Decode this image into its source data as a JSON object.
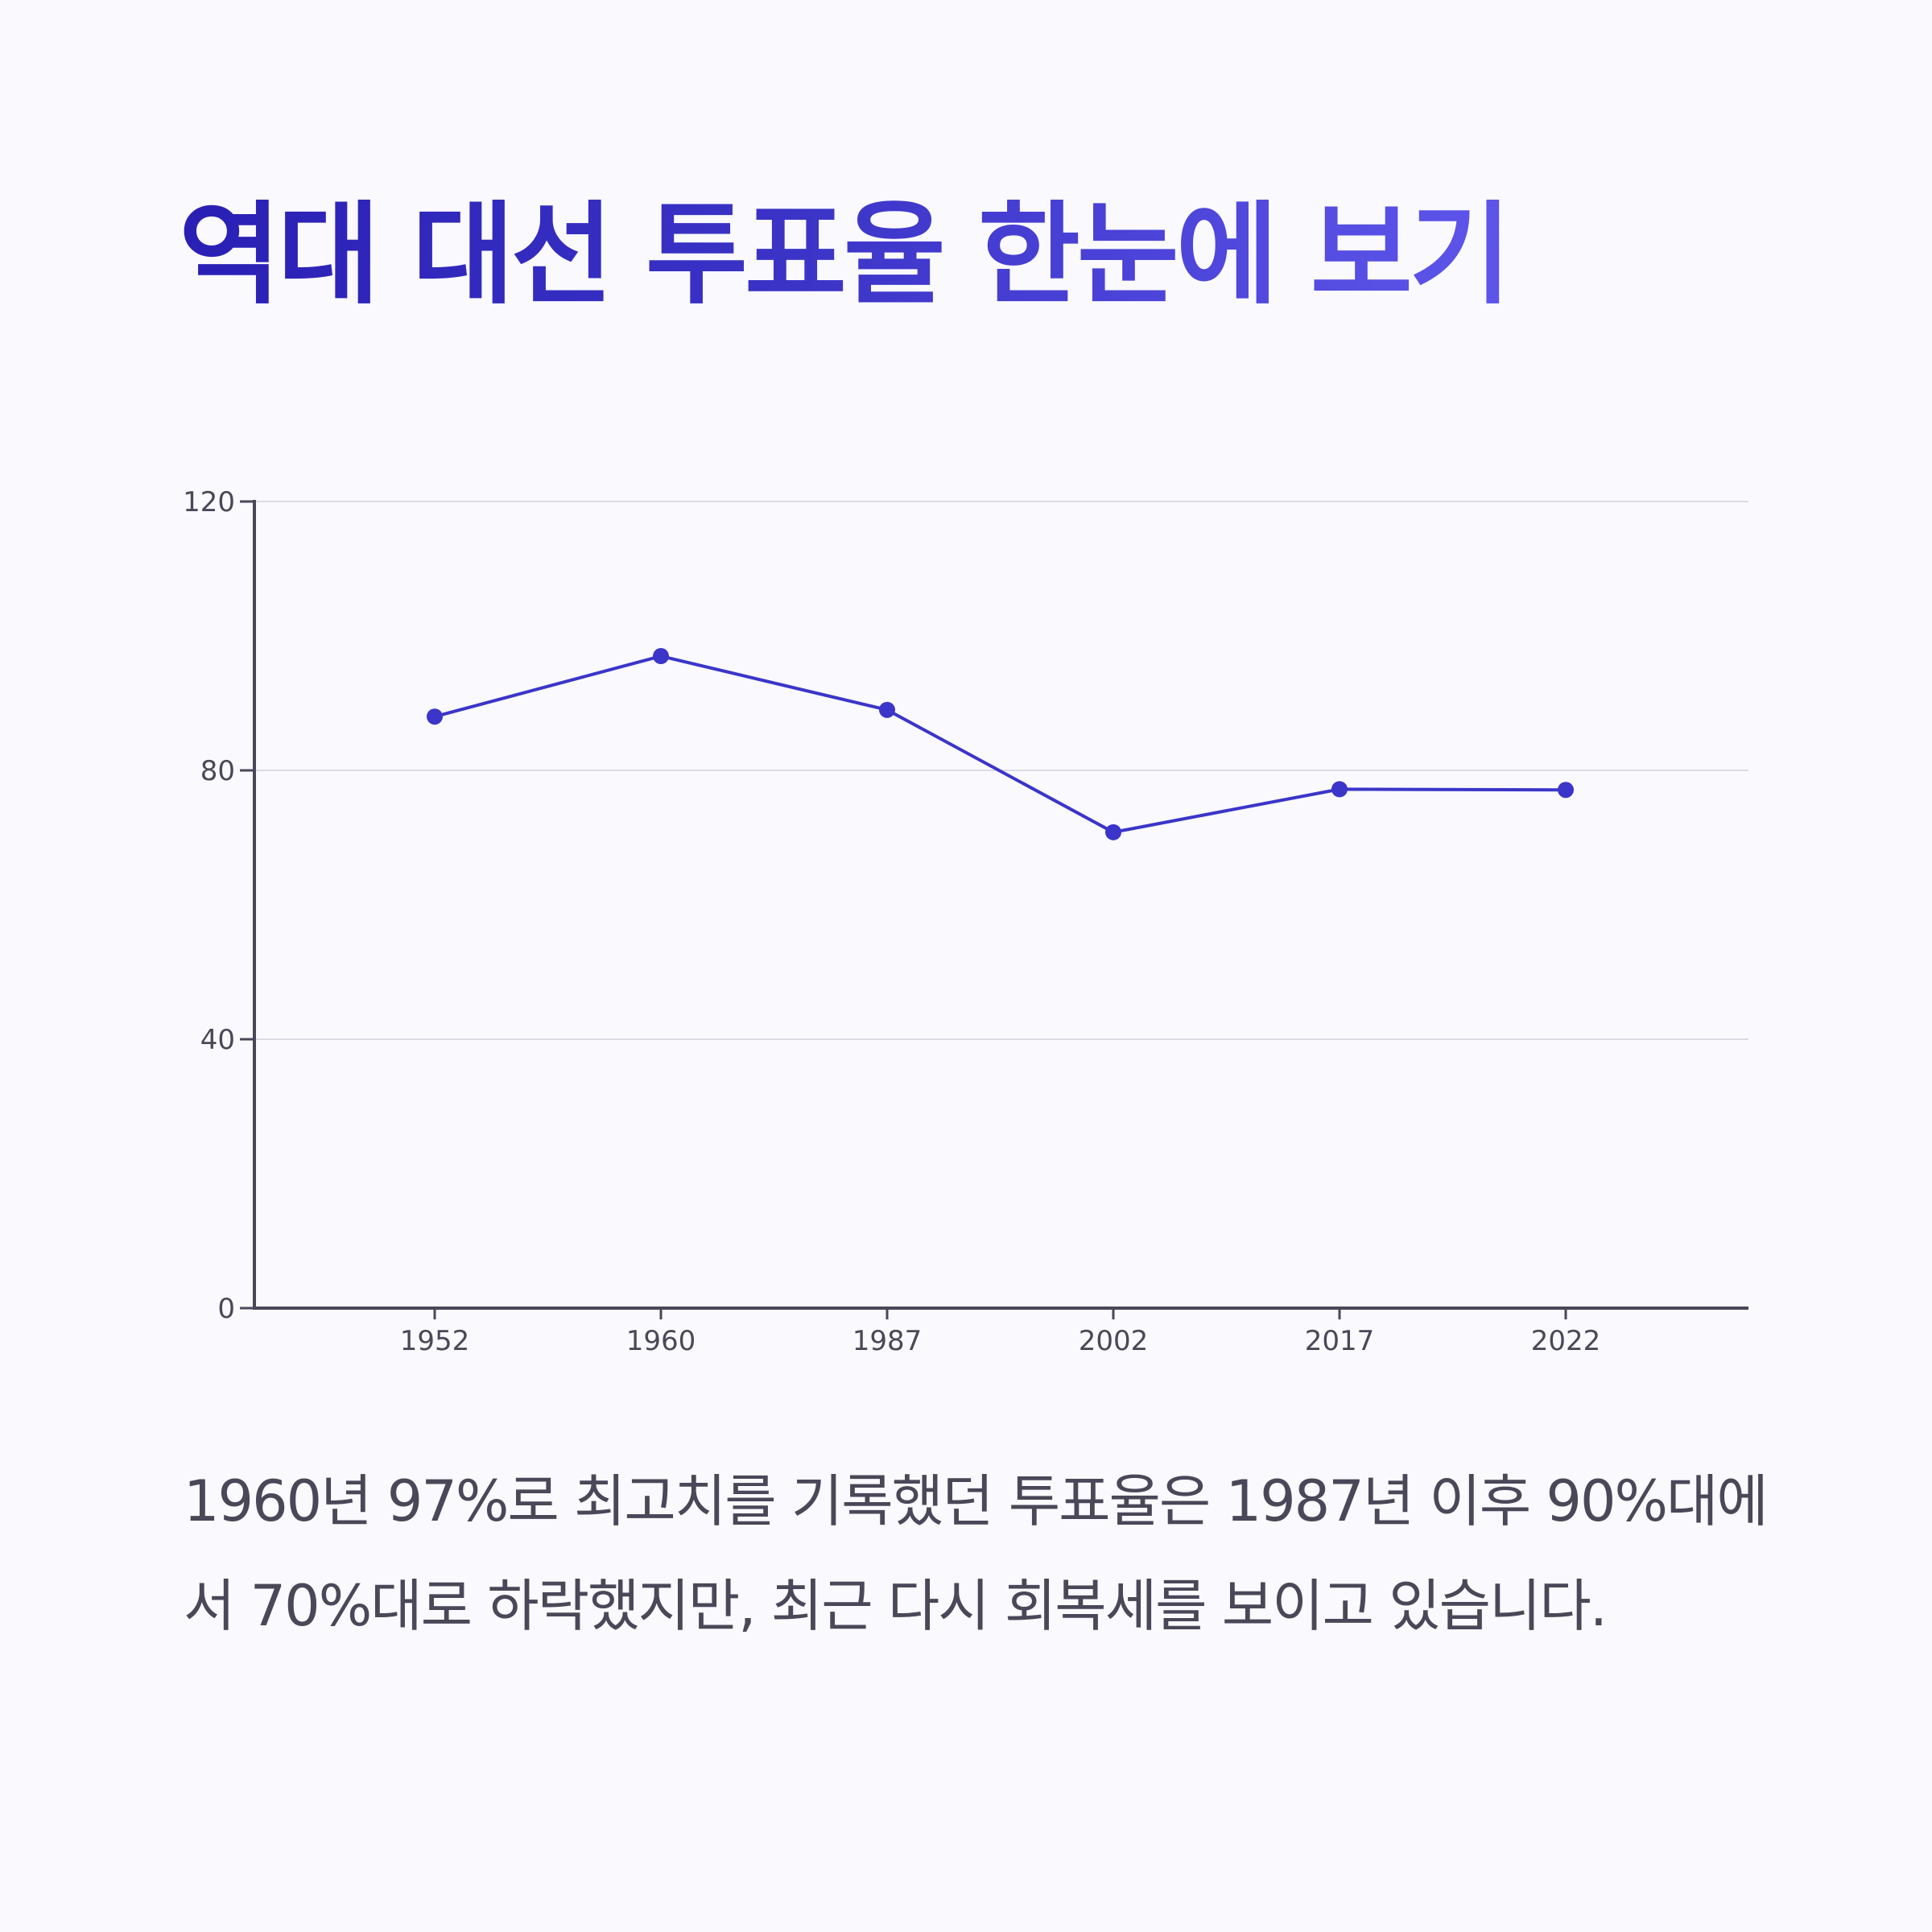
{
  "title": "역대 대선 투표율 한눈에 보기",
  "description": "1960년 97%로 최고치를 기록했던 투표율은 1987년 이후 90%대에서 70%대로 하락했지만, 최근 다시 회복세를 보이고 있습니다.",
  "colors": {
    "title_start": "#2a1fb4",
    "title_end": "#5e55ea",
    "line": "#3b35c9",
    "axis": "#4a4858",
    "grid": "#dcdce4",
    "text": "#4a4858",
    "background": "#f9f9fe"
  },
  "chart_data": {
    "type": "line",
    "title": "",
    "xlabel": "",
    "ylabel": "",
    "categories": [
      "1952",
      "1960",
      "1987",
      "2002",
      "2017",
      "2022"
    ],
    "series": [
      {
        "values": [
          88,
          97,
          89,
          70.8,
          77.2,
          77.1
        ]
      }
    ],
    "ylim": [
      0,
      120
    ],
    "yticks": [
      0,
      40,
      80,
      120
    ],
    "grid": true,
    "legend": "none"
  }
}
